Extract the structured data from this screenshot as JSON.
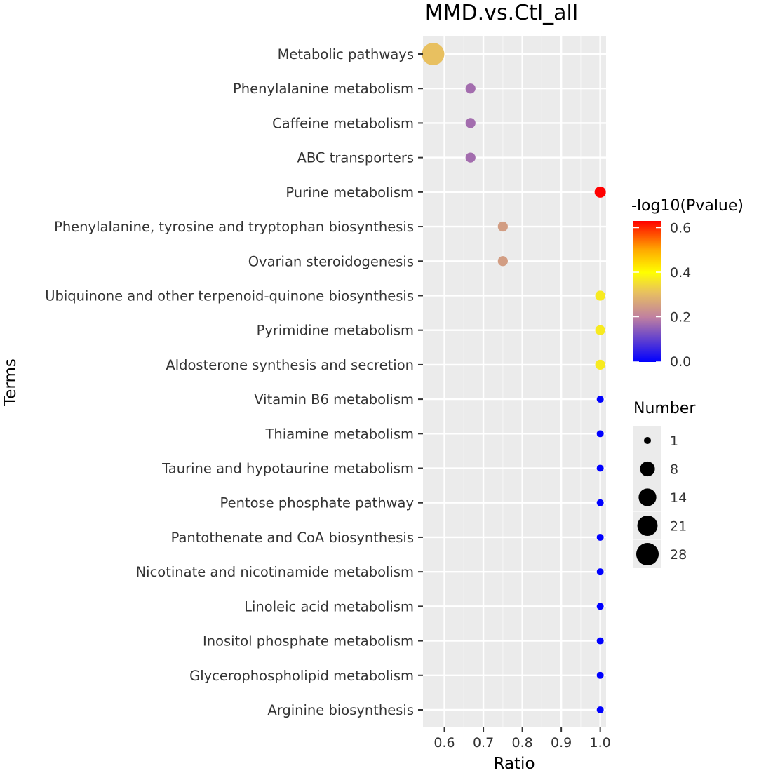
{
  "chart_data": {
    "type": "scatter",
    "title": "MMD.vs.Ctl_all",
    "xlabel": "Ratio",
    "ylabel": "Terms",
    "xlim": [
      0.545,
      1.015
    ],
    "xticks": [
      0.6,
      0.7,
      0.8,
      0.9,
      1.0
    ],
    "xtick_labels": [
      "0.6",
      "0.7",
      "0.8",
      "0.9",
      "1.0"
    ],
    "grid": true,
    "points": [
      {
        "term": "Metabolic pathways",
        "ratio": 0.571,
        "number": 28,
        "neglog10p": 0.31
      },
      {
        "term": "Phenylalanine metabolism",
        "ratio": 0.667,
        "number": 2,
        "neglog10p": 0.17
      },
      {
        "term": "Caffeine metabolism",
        "ratio": 0.667,
        "number": 2,
        "neglog10p": 0.17
      },
      {
        "term": "ABC transporters",
        "ratio": 0.667,
        "number": 2,
        "neglog10p": 0.17
      },
      {
        "term": "Purine metabolism",
        "ratio": 1.0,
        "number": 3,
        "neglog10p": 0.63
      },
      {
        "term": "Phenylalanine, tyrosine and tryptophan biosynthesis",
        "ratio": 0.75,
        "number": 2,
        "neglog10p": 0.25
      },
      {
        "term": "Ovarian steroidogenesis",
        "ratio": 0.75,
        "number": 2,
        "neglog10p": 0.25
      },
      {
        "term": "Ubiquinone and other terpenoid-quinone biosynthesis",
        "ratio": 1.0,
        "number": 2,
        "neglog10p": 0.37
      },
      {
        "term": "Pyrimidine metabolism",
        "ratio": 1.0,
        "number": 2,
        "neglog10p": 0.37
      },
      {
        "term": "Aldosterone synthesis and secretion",
        "ratio": 1.0,
        "number": 2,
        "neglog10p": 0.37
      },
      {
        "term": "Vitamin B6 metabolism",
        "ratio": 1.0,
        "number": 1,
        "neglog10p": 0.0
      },
      {
        "term": "Thiamine metabolism",
        "ratio": 1.0,
        "number": 1,
        "neglog10p": 0.0
      },
      {
        "term": "Taurine and hypotaurine metabolism",
        "ratio": 1.0,
        "number": 1,
        "neglog10p": 0.0
      },
      {
        "term": "Pentose phosphate pathway",
        "ratio": 1.0,
        "number": 1,
        "neglog10p": 0.0
      },
      {
        "term": "Pantothenate and CoA biosynthesis",
        "ratio": 1.0,
        "number": 1,
        "neglog10p": 0.0
      },
      {
        "term": "Nicotinate and nicotinamide metabolism",
        "ratio": 1.0,
        "number": 1,
        "neglog10p": 0.0
      },
      {
        "term": "Linoleic acid metabolism",
        "ratio": 1.0,
        "number": 1,
        "neglog10p": 0.0
      },
      {
        "term": "Inositol phosphate metabolism",
        "ratio": 1.0,
        "number": 1,
        "neglog10p": 0.0
      },
      {
        "term": "Glycerophospholipid metabolism",
        "ratio": 1.0,
        "number": 1,
        "neglog10p": 0.0
      },
      {
        "term": "Arginine biosynthesis",
        "ratio": 1.0,
        "number": 1,
        "neglog10p": 0.0
      }
    ],
    "color_legend": {
      "title": "-log10(Pvalue)",
      "range": [
        0.0,
        0.63
      ],
      "ticks": [
        0.0,
        0.2,
        0.4,
        0.6
      ],
      "tick_labels": [
        "0.0",
        "0.2",
        "0.4",
        "0.6"
      ],
      "gradient": [
        {
          "v": 0.0,
          "color": "#0000ff"
        },
        {
          "v": 0.2,
          "color": "#c080a0"
        },
        {
          "v": 0.31,
          "color": "#e8c060"
        },
        {
          "v": 0.4,
          "color": "#ffff00"
        },
        {
          "v": 0.5,
          "color": "#ffaa00"
        },
        {
          "v": 0.63,
          "color": "#ff0000"
        }
      ]
    },
    "size_legend": {
      "title": "Number",
      "values": [
        1,
        8,
        14,
        21,
        28
      ],
      "labels": [
        "1",
        "8",
        "14",
        "21",
        "28"
      ]
    }
  }
}
